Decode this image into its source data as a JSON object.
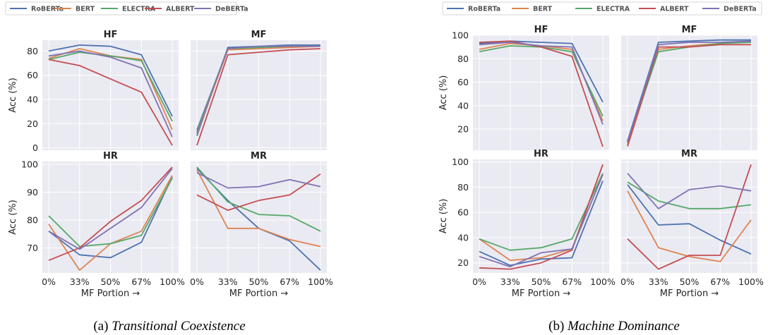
{
  "x_categories": [
    "0%",
    "33%",
    "50%",
    "67%",
    "100%"
  ],
  "xlabel": "MF Portion →",
  "ylabel": "Acc (%)",
  "legend_placement": "top",
  "series_styles": [
    {
      "name": "RoBERTa",
      "color": "#4c72b0"
    },
    {
      "name": "BERT",
      "color": "#dd8452"
    },
    {
      "name": "ELECTRA",
      "color": "#55a868"
    },
    {
      "name": "ALBERT",
      "color": "#c44e52"
    },
    {
      "name": "DeBERTa",
      "color": "#8172b3"
    }
  ],
  "figures": [
    {
      "caption_prefix": "(a) ",
      "caption_title": "Transitional Coexistence",
      "legend": [
        "RoBERTa",
        "BERT",
        "ELECTRA",
        "ALBERT",
        "DeBERTa"
      ]
    },
    {
      "caption_prefix": "(b) ",
      "caption_title": "Machine Dominance",
      "legend": [
        "RoBERTa",
        "BERT",
        "ELECTRA",
        "ALBERT",
        "DeBERTa"
      ]
    }
  ],
  "chart_data": [
    {
      "type": "line",
      "figure": 0,
      "title": "HF",
      "categories": [
        "0%",
        "33%",
        "50%",
        "67%",
        "100%"
      ],
      "ylim": [
        -2,
        89
      ],
      "yticks": [
        0,
        20,
        40,
        60,
        80
      ],
      "grid": true,
      "ylabel": "Acc (%)",
      "xlabel": "",
      "series": [
        {
          "name": "RoBERTa",
          "values": [
            80,
            85,
            84,
            77,
            26
          ]
        },
        {
          "name": "BERT",
          "values": [
            74,
            82,
            76,
            73,
            15
          ]
        },
        {
          "name": "ELECTRA",
          "values": [
            73,
            79,
            76,
            72,
            22
          ]
        },
        {
          "name": "ALBERT",
          "values": [
            73,
            68,
            57,
            46,
            2
          ]
        },
        {
          "name": "DeBERTa",
          "values": [
            76,
            80,
            75,
            66,
            9
          ]
        }
      ]
    },
    {
      "type": "line",
      "figure": 0,
      "title": "MF",
      "categories": [
        "0%",
        "33%",
        "50%",
        "67%",
        "100%"
      ],
      "ylim": [
        -2,
        89
      ],
      "yticks": [
        0,
        20,
        40,
        60,
        80
      ],
      "grid": true,
      "ylabel": "",
      "xlabel": "",
      "series": [
        {
          "name": "RoBERTa",
          "values": [
            10,
            83,
            84,
            85,
            85
          ]
        },
        {
          "name": "BERT",
          "values": [
            12,
            81,
            82,
            83,
            84
          ]
        },
        {
          "name": "ELECTRA",
          "values": [
            15,
            82,
            83,
            84,
            84
          ]
        },
        {
          "name": "ALBERT",
          "values": [
            2,
            77,
            79,
            81,
            82
          ]
        },
        {
          "name": "DeBERTa",
          "values": [
            13,
            82,
            84,
            84,
            84
          ]
        }
      ]
    },
    {
      "type": "line",
      "figure": 0,
      "title": "HR",
      "categories": [
        "0%",
        "33%",
        "50%",
        "67%",
        "100%"
      ],
      "ylim": [
        61,
        101
      ],
      "yticks": [
        70,
        80,
        90,
        100
      ],
      "grid": true,
      "ylabel": "Acc (%)",
      "xlabel": "MF Portion →",
      "series": [
        {
          "name": "RoBERTa",
          "values": [
            76,
            67.5,
            66.5,
            72,
            95.5
          ]
        },
        {
          "name": "BERT",
          "values": [
            78.5,
            62,
            71.5,
            76,
            96
          ]
        },
        {
          "name": "ELECTRA",
          "values": [
            81.5,
            70.5,
            71.5,
            74.5,
            95
          ]
        },
        {
          "name": "ALBERT",
          "values": [
            65.5,
            70,
            79.5,
            87,
            99
          ]
        },
        {
          "name": "DeBERTa",
          "values": [
            76,
            69.5,
            77,
            84.5,
            98.5
          ]
        }
      ]
    },
    {
      "type": "line",
      "figure": 0,
      "title": "MR",
      "categories": [
        "0%",
        "33%",
        "50%",
        "67%",
        "100%"
      ],
      "ylim": [
        61,
        101
      ],
      "yticks": [
        70,
        80,
        90,
        100
      ],
      "grid": true,
      "ylabel": "",
      "xlabel": "MF Portion →",
      "series": [
        {
          "name": "RoBERTa",
          "values": [
            98.5,
            87,
            77,
            72.5,
            62
          ]
        },
        {
          "name": "BERT",
          "values": [
            98,
            77,
            77,
            73,
            70.5
          ]
        },
        {
          "name": "ELECTRA",
          "values": [
            99,
            86.5,
            82,
            81.5,
            76
          ]
        },
        {
          "name": "ALBERT",
          "values": [
            89,
            83.5,
            87,
            89,
            96.5
          ]
        },
        {
          "name": "DeBERTa",
          "values": [
            97,
            91.5,
            92,
            94.5,
            92
          ]
        }
      ]
    },
    {
      "type": "line",
      "figure": 1,
      "title": "HF",
      "categories": [
        "0%",
        "33%",
        "50%",
        "67%",
        "100%"
      ],
      "ylim": [
        2,
        100
      ],
      "yticks": [
        20,
        40,
        60,
        80,
        100
      ],
      "grid": true,
      "ylabel": "Acc (%)",
      "xlabel": "",
      "series": [
        {
          "name": "RoBERTa",
          "values": [
            93,
            95,
            94,
            93,
            43
          ]
        },
        {
          "name": "BERT",
          "values": [
            88,
            93,
            91,
            88,
            27
          ]
        },
        {
          "name": "ELECTRA",
          "values": [
            86,
            91,
            90,
            86,
            31
          ]
        },
        {
          "name": "ALBERT",
          "values": [
            94,
            95,
            90,
            82,
            5
          ]
        },
        {
          "name": "DeBERTa",
          "values": [
            92,
            94,
            91,
            90,
            24
          ]
        }
      ]
    },
    {
      "type": "line",
      "figure": 1,
      "title": "MF",
      "categories": [
        "0%",
        "33%",
        "50%",
        "67%",
        "100%"
      ],
      "ylim": [
        2,
        100
      ],
      "yticks": [
        20,
        40,
        60,
        80,
        100
      ],
      "grid": true,
      "ylabel": "",
      "xlabel": "",
      "series": [
        {
          "name": "RoBERTa",
          "values": [
            10,
            94,
            95,
            96,
            96
          ]
        },
        {
          "name": "BERT",
          "values": [
            5,
            88,
            91,
            93,
            95
          ]
        },
        {
          "name": "ELECTRA",
          "values": [
            8,
            86,
            90,
            93,
            94
          ]
        },
        {
          "name": "ALBERT",
          "values": [
            6,
            90,
            90,
            92,
            92
          ]
        },
        {
          "name": "DeBERTa",
          "values": [
            9,
            92,
            94,
            94,
            95
          ]
        }
      ]
    },
    {
      "type": "line",
      "figure": 1,
      "title": "HR",
      "categories": [
        "0%",
        "33%",
        "50%",
        "67%",
        "100%"
      ],
      "ylim": [
        12,
        102
      ],
      "yticks": [
        20,
        40,
        60,
        80,
        100
      ],
      "grid": true,
      "ylabel": "Acc (%)",
      "xlabel": "MF Portion →",
      "series": [
        {
          "name": "RoBERTa",
          "values": [
            29,
            18,
            23,
            24,
            85
          ]
        },
        {
          "name": "BERT",
          "values": [
            39,
            22,
            24,
            31,
            98
          ]
        },
        {
          "name": "ELECTRA",
          "values": [
            39,
            30,
            32,
            39,
            91
          ]
        },
        {
          "name": "ALBERT",
          "values": [
            16,
            15,
            20,
            30,
            98
          ]
        },
        {
          "name": "DeBERTa",
          "values": [
            25,
            17,
            28,
            31,
            90
          ]
        }
      ]
    },
    {
      "type": "line",
      "figure": 1,
      "title": "MR",
      "categories": [
        "0%",
        "33%",
        "50%",
        "67%",
        "100%"
      ],
      "ylim": [
        12,
        102
      ],
      "yticks": [
        20,
        40,
        60,
        80,
        100
      ],
      "grid": true,
      "ylabel": "",
      "xlabel": "MF Portion →",
      "series": [
        {
          "name": "RoBERTa",
          "values": [
            82,
            50,
            51,
            38,
            27
          ]
        },
        {
          "name": "BERT",
          "values": [
            77,
            32,
            25,
            21,
            54
          ]
        },
        {
          "name": "ELECTRA",
          "values": [
            84,
            69,
            63,
            63,
            66
          ]
        },
        {
          "name": "ALBERT",
          "values": [
            39,
            15,
            26,
            26,
            98
          ]
        },
        {
          "name": "DeBERTa",
          "values": [
            91,
            63,
            78,
            81,
            77
          ]
        }
      ]
    }
  ]
}
